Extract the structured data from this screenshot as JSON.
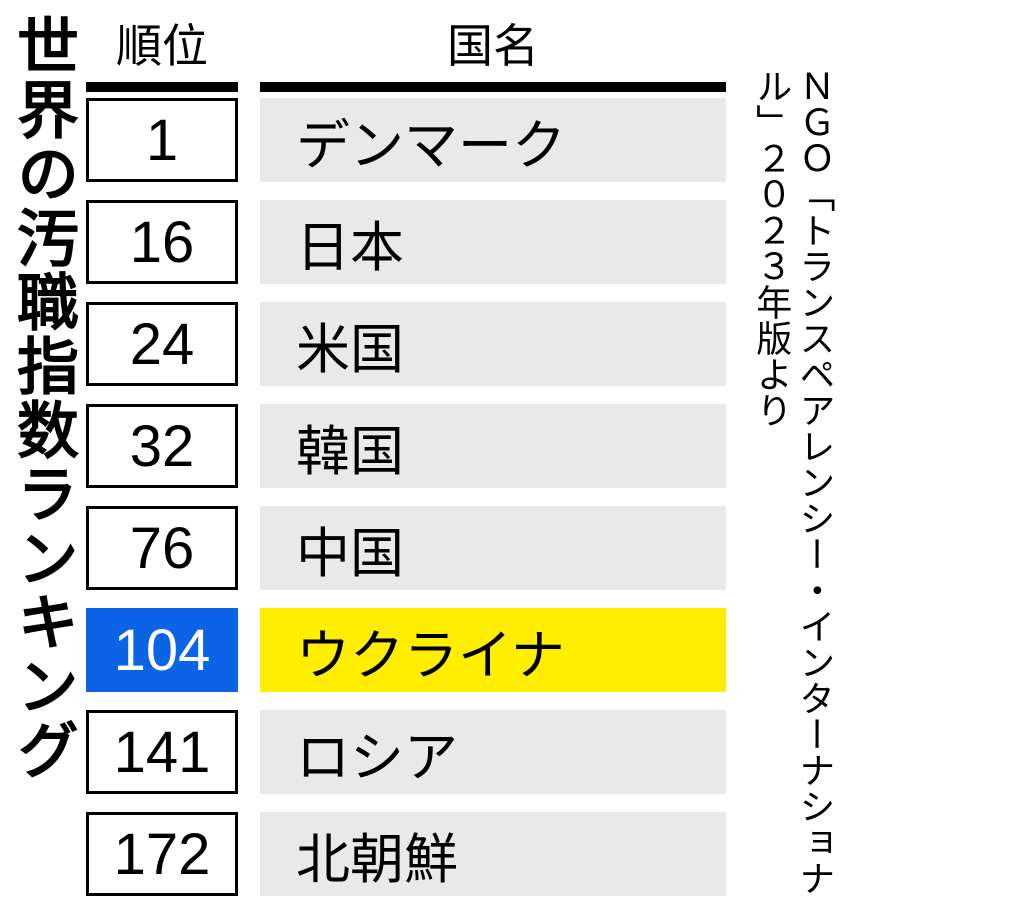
{
  "title": "世界の汚職指数ランキング",
  "headers": {
    "rank": "順位",
    "country": "国名"
  },
  "rows": [
    {
      "rank": "1",
      "country": "デンマーク",
      "highlighted": false
    },
    {
      "rank": "16",
      "country": "日本",
      "highlighted": false
    },
    {
      "rank": "24",
      "country": "米国",
      "highlighted": false
    },
    {
      "rank": "32",
      "country": "韓国",
      "highlighted": false
    },
    {
      "rank": "76",
      "country": "中国",
      "highlighted": false
    },
    {
      "rank": "104",
      "country": "ウクライナ",
      "highlighted": true
    },
    {
      "rank": "141",
      "country": "ロシア",
      "highlighted": false
    },
    {
      "rank": "172",
      "country": "北朝鮮",
      "highlighted": false
    }
  ],
  "styling": {
    "row_background": "#e9e9e9",
    "highlight_rank_bg": "#0b63e5",
    "highlight_rank_text": "#ffffff",
    "highlight_country_bg": "#ffee00",
    "border_color": "#000000"
  },
  "source": "ＮＧＯ「トランスペアレンシー・インターナショナル」２０２３年版より"
}
